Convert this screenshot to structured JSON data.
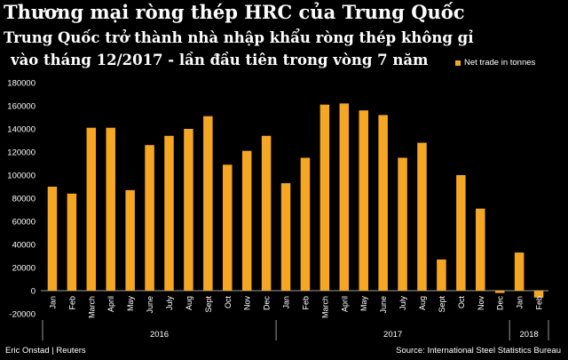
{
  "header": {
    "title": "Thương mại ròng thép HRC của Trung Quốc",
    "subtitle_line1": "Trung Quốc trở thành nhà nhập khẩu ròng thép không gỉ",
    "subtitle_line2": "vào tháng 12/2017 - lần đầu tiên trong vòng 7 năm"
  },
  "footer": {
    "credit": "Eric Onstad | Reuters",
    "source": "Source: International Steel Statistics Bureau"
  },
  "colors": {
    "bar": "#f5a623",
    "background": "#000000",
    "text": "#ffffff"
  },
  "chart_data": {
    "type": "bar",
    "title": "Thương mại ròng thép HRC của Trung Quốc",
    "categories": [
      "Jan",
      "Feb",
      "March",
      "April",
      "May",
      "June",
      "July",
      "Aug",
      "Sept",
      "Oct",
      "Nov",
      "Dec",
      "Jan",
      "Feb",
      "March",
      "April",
      "May",
      "June",
      "July",
      "Aug",
      "Sept",
      "Oct",
      "Nov",
      "Dec",
      "Jan",
      "Feb"
    ],
    "years": [
      {
        "label": "2016",
        "start": 0,
        "end": 11
      },
      {
        "label": "2017",
        "start": 12,
        "end": 23
      },
      {
        "label": "2018",
        "start": 24,
        "end": 25
      }
    ],
    "series": [
      {
        "name": "Net trade in tonnes",
        "values": [
          90000,
          84000,
          141000,
          141000,
          87000,
          126000,
          134000,
          140000,
          151000,
          109000,
          121000,
          134000,
          93000,
          115000,
          161000,
          162000,
          156000,
          152000,
          115000,
          128000,
          27000,
          100000,
          71000,
          -2000,
          33000,
          -6000
        ]
      }
    ],
    "yticks": [
      -20000,
      0,
      20000,
      40000,
      60000,
      80000,
      100000,
      120000,
      140000,
      160000,
      180000
    ],
    "ylim": [
      -20000,
      180000
    ],
    "legend_position": "top-right",
    "grid": false
  }
}
